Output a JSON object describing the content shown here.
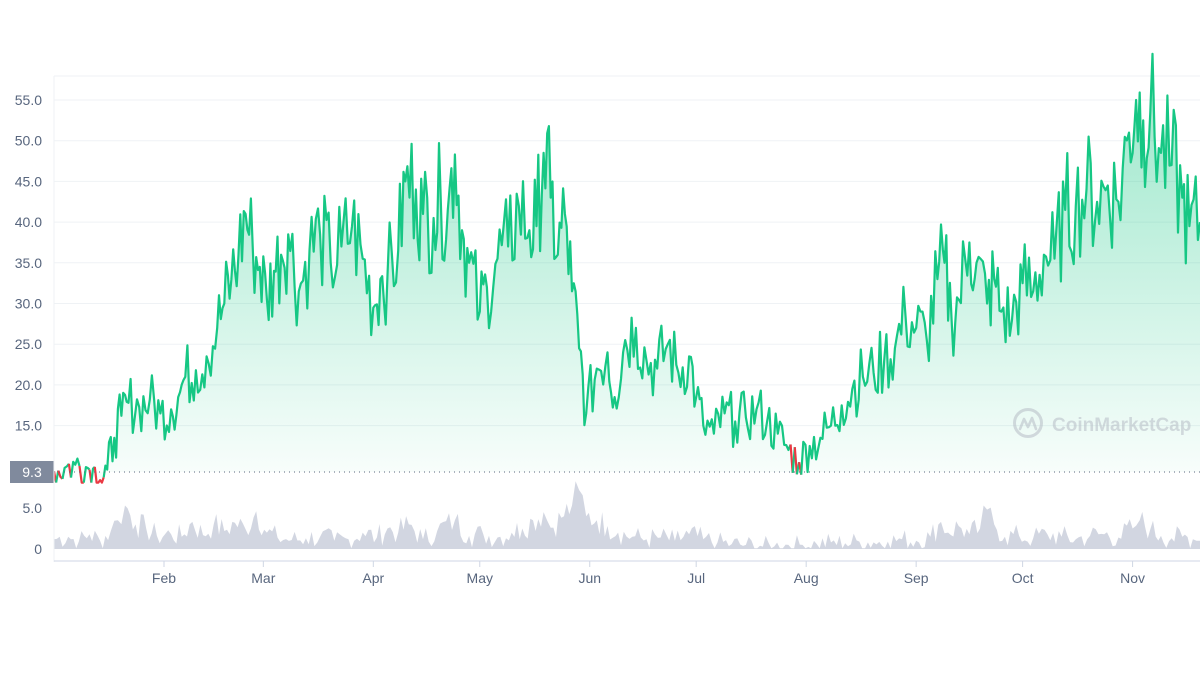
{
  "chart_data": {
    "type": "area",
    "watermark": {
      "text": "CoinMarketCap",
      "icon": "coinmarketcap-logo-icon"
    },
    "y_ticks": [
      "55.0",
      "50.0",
      "45.0",
      "40.0",
      "35.0",
      "30.0",
      "25.0",
      "20.0",
      "15.0"
    ],
    "ylim": [
      9.3,
      56.5
    ],
    "grid": true,
    "current_price_label": "9.3",
    "x_tick_labels": [
      "Feb",
      "Mar",
      "Apr",
      "May",
      "Jun",
      "Jul",
      "Aug",
      "Sep",
      "Oct",
      "Nov"
    ],
    "xlim": [
      "2021-01-01",
      "2021-11-20"
    ],
    "colors": {
      "up_line": "#16c784",
      "down_line": "#ea3943",
      "volume": "#cdd1de",
      "grid": "#eff2f5",
      "axis_text": "#58667e",
      "price_label_bg": "#808a9d"
    },
    "price_series": {
      "name": "Price",
      "points": [
        [
          "2021-01-01",
          9.4
        ],
        [
          "2021-01-04",
          9.8
        ],
        [
          "2021-01-07",
          10.2
        ],
        [
          "2021-01-10",
          9.9
        ],
        [
          "2021-01-12",
          9.7
        ],
        [
          "2021-01-14",
          8.3
        ],
        [
          "2021-01-16",
          9.6
        ],
        [
          "2021-01-18",
          13.5
        ],
        [
          "2021-01-20",
          16.2
        ],
        [
          "2021-01-22",
          17.8
        ],
        [
          "2021-01-25",
          17.3
        ],
        [
          "2021-01-28",
          18.2
        ],
        [
          "2021-01-31",
          16.5
        ],
        [
          "2021-02-03",
          17.0
        ],
        [
          "2021-02-05",
          18.5
        ],
        [
          "2021-02-07",
          21.0
        ],
        [
          "2021-02-10",
          21.8
        ],
        [
          "2021-02-13",
          23.5
        ],
        [
          "2021-02-16",
          27.0
        ],
        [
          "2021-02-18",
          30.0
        ],
        [
          "2021-02-20",
          33.0
        ],
        [
          "2021-02-22",
          36.0
        ],
        [
          "2021-02-24",
          41.0
        ],
        [
          "2021-02-26",
          37.0
        ],
        [
          "2021-02-28",
          34.5
        ],
        [
          "2021-03-02",
          30.5
        ],
        [
          "2021-03-04",
          34.0
        ],
        [
          "2021-03-06",
          36.0
        ],
        [
          "2021-03-08",
          38.5
        ],
        [
          "2021-03-11",
          31.5
        ],
        [
          "2021-03-14",
          36.5
        ],
        [
          "2021-03-17",
          38.5
        ],
        [
          "2021-03-20",
          35.0
        ],
        [
          "2021-03-23",
          37.0
        ],
        [
          "2021-03-26",
          39.5
        ],
        [
          "2021-03-29",
          35.5
        ],
        [
          "2021-04-01",
          29.5
        ],
        [
          "2021-04-03",
          33.0
        ],
        [
          "2021-04-05",
          33.5
        ],
        [
          "2021-04-08",
          36.5
        ],
        [
          "2021-04-10",
          45.0
        ],
        [
          "2021-04-13",
          44.0
        ],
        [
          "2021-04-15",
          41.0
        ],
        [
          "2021-04-18",
          40.5
        ],
        [
          "2021-04-20",
          43.0
        ],
        [
          "2021-04-22",
          41.5
        ],
        [
          "2021-04-24",
          48.3
        ],
        [
          "2021-04-26",
          39.0
        ],
        [
          "2021-04-28",
          35.0
        ],
        [
          "2021-05-01",
          29.0
        ],
        [
          "2021-05-03",
          32.0
        ],
        [
          "2021-05-06",
          35.5
        ],
        [
          "2021-05-09",
          37.0
        ],
        [
          "2021-05-12",
          42.0
        ],
        [
          "2021-05-15",
          39.0
        ],
        [
          "2021-05-17",
          39.5
        ],
        [
          "2021-05-19",
          48.5
        ],
        [
          "2021-05-21",
          43.0
        ],
        [
          "2021-05-23",
          36.0
        ],
        [
          "2021-05-25",
          41.0
        ],
        [
          "2021-05-27",
          31.5
        ],
        [
          "2021-05-29",
          24.5
        ],
        [
          "2021-05-31",
          16.5
        ],
        [
          "2021-06-03",
          22.0
        ],
        [
          "2021-06-06",
          24.0
        ],
        [
          "2021-06-08",
          18.5
        ],
        [
          "2021-06-11",
          25.5
        ],
        [
          "2021-06-14",
          27.0
        ],
        [
          "2021-06-17",
          23.0
        ],
        [
          "2021-06-20",
          22.0
        ],
        [
          "2021-06-23",
          25.0
        ],
        [
          "2021-06-26",
          21.5
        ],
        [
          "2021-06-29",
          23.5
        ],
        [
          "2021-07-01",
          18.5
        ],
        [
          "2021-07-03",
          15.0
        ],
        [
          "2021-07-06",
          14.0
        ],
        [
          "2021-07-09",
          16.5
        ],
        [
          "2021-07-12",
          15.5
        ],
        [
          "2021-07-15",
          16.0
        ],
        [
          "2021-07-18",
          17.0
        ],
        [
          "2021-07-21",
          15.5
        ],
        [
          "2021-07-24",
          14.0
        ],
        [
          "2021-07-27",
          12.0
        ],
        [
          "2021-07-30",
          10.5
        ],
        [
          "2021-08-02",
          12.5
        ],
        [
          "2021-08-05",
          13.5
        ],
        [
          "2021-08-08",
          15.0
        ],
        [
          "2021-08-11",
          17.5
        ],
        [
          "2021-08-14",
          19.5
        ],
        [
          "2021-08-17",
          21.0
        ],
        [
          "2021-08-20",
          21.5
        ],
        [
          "2021-08-23",
          23.0
        ],
        [
          "2021-08-26",
          24.5
        ],
        [
          "2021-08-29",
          28.5
        ],
        [
          "2021-09-01",
          27.0
        ],
        [
          "2021-09-04",
          25.5
        ],
        [
          "2021-09-07",
          33.0
        ],
        [
          "2021-09-09",
          35.0
        ],
        [
          "2021-09-11",
          28.0
        ],
        [
          "2021-09-13",
          30.5
        ],
        [
          "2021-09-16",
          37.5
        ],
        [
          "2021-09-18",
          35.0
        ],
        [
          "2021-09-21",
          30.0
        ],
        [
          "2021-09-23",
          33.0
        ],
        [
          "2021-09-25",
          29.0
        ],
        [
          "2021-09-28",
          28.0
        ],
        [
          "2021-10-01",
          32.5
        ],
        [
          "2021-10-04",
          31.5
        ],
        [
          "2021-10-07",
          36.0
        ],
        [
          "2021-10-10",
          35.5
        ],
        [
          "2021-10-13",
          41.5
        ],
        [
          "2021-10-16",
          42.0
        ],
        [
          "2021-10-19",
          44.0
        ],
        [
          "2021-10-22",
          42.5
        ],
        [
          "2021-10-25",
          44.5
        ],
        [
          "2021-10-28",
          42.5
        ],
        [
          "2021-10-31",
          51.0
        ],
        [
          "2021-11-02",
          55.0
        ],
        [
          "2021-11-04",
          52.5
        ],
        [
          "2021-11-06",
          53.5
        ],
        [
          "2021-11-09",
          48.5
        ],
        [
          "2021-11-12",
          47.0
        ],
        [
          "2021-11-15",
          43.0
        ],
        [
          "2021-11-17",
          39.5
        ],
        [
          "2021-11-20",
          40.0
        ]
      ]
    },
    "volume_ticks": [
      "5.0",
      "0"
    ],
    "volume_ylim": [
      0,
      8
    ],
    "volume_series": {
      "name": "Volume",
      "points": [
        [
          "2021-01-01",
          1.2
        ],
        [
          "2021-01-05",
          1.5
        ],
        [
          "2021-01-08",
          0.9
        ],
        [
          "2021-01-11",
          1.8
        ],
        [
          "2021-01-14",
          1.0
        ],
        [
          "2021-01-17",
          2.2
        ],
        [
          "2021-01-19",
          3.5
        ],
        [
          "2021-01-21",
          5.3
        ],
        [
          "2021-01-24",
          3.0
        ],
        [
          "2021-01-27",
          2.5
        ],
        [
          "2021-01-30",
          1.6
        ],
        [
          "2021-02-03",
          1.8
        ],
        [
          "2021-02-06",
          1.5
        ],
        [
          "2021-02-09",
          3.3
        ],
        [
          "2021-02-12",
          1.7
        ],
        [
          "2021-02-15",
          3.0
        ],
        [
          "2021-02-18",
          2.2
        ],
        [
          "2021-02-21",
          3.2
        ],
        [
          "2021-02-24",
          2.4
        ],
        [
          "2021-02-27",
          4.6
        ],
        [
          "2021-03-02",
          2.0
        ],
        [
          "2021-03-05",
          1.4
        ],
        [
          "2021-03-09",
          1.1
        ],
        [
          "2021-03-13",
          1.3
        ],
        [
          "2021-03-17",
          1.5
        ],
        [
          "2021-03-21",
          1.0
        ],
        [
          "2021-03-25",
          1.2
        ],
        [
          "2021-03-29",
          2.0
        ],
        [
          "2021-04-02",
          1.4
        ],
        [
          "2021-04-05",
          2.5
        ],
        [
          "2021-04-08",
          2.0
        ],
        [
          "2021-04-11",
          3.0
        ],
        [
          "2021-04-15",
          1.2
        ],
        [
          "2021-04-19",
          2.2
        ],
        [
          "2021-04-24",
          3.5
        ],
        [
          "2021-04-28",
          1.6
        ],
        [
          "2021-05-02",
          1.8
        ],
        [
          "2021-05-06",
          1.4
        ],
        [
          "2021-05-10",
          2.0
        ],
        [
          "2021-05-13",
          2.5
        ],
        [
          "2021-05-16",
          3.5
        ],
        [
          "2021-05-19",
          4.5
        ],
        [
          "2021-05-21",
          2.6
        ],
        [
          "2021-05-24",
          3.8
        ],
        [
          "2021-05-27",
          5.3
        ],
        [
          "2021-05-29",
          7.2
        ],
        [
          "2021-05-31",
          4.0
        ],
        [
          "2021-06-03",
          3.5
        ],
        [
          "2021-06-06",
          2.8
        ],
        [
          "2021-06-09",
          2.0
        ],
        [
          "2021-06-13",
          1.5
        ],
        [
          "2021-06-17",
          1.2
        ],
        [
          "2021-06-21",
          1.4
        ],
        [
          "2021-06-25",
          1.0
        ],
        [
          "2021-06-29",
          1.8
        ],
        [
          "2021-07-03",
          1.2
        ],
        [
          "2021-07-07",
          0.8
        ],
        [
          "2021-07-11",
          0.6
        ],
        [
          "2021-07-15",
          0.5
        ],
        [
          "2021-07-19",
          0.4
        ],
        [
          "2021-07-23",
          0.3
        ],
        [
          "2021-07-27",
          0.5
        ],
        [
          "2021-07-31",
          0.5
        ],
        [
          "2021-08-04",
          0.6
        ],
        [
          "2021-08-08",
          0.8
        ],
        [
          "2021-08-12",
          0.7
        ],
        [
          "2021-08-16",
          0.9
        ],
        [
          "2021-08-20",
          0.8
        ],
        [
          "2021-08-24",
          0.9
        ],
        [
          "2021-08-28",
          1.2
        ],
        [
          "2021-09-01",
          1.0
        ],
        [
          "2021-09-05",
          1.5
        ],
        [
          "2021-09-08",
          3.3
        ],
        [
          "2021-09-10",
          2.0
        ],
        [
          "2021-09-13",
          2.8
        ],
        [
          "2021-09-16",
          1.8
        ],
        [
          "2021-09-19",
          2.5
        ],
        [
          "2021-09-21",
          4.8
        ],
        [
          "2021-09-23",
          3.0
        ],
        [
          "2021-09-26",
          1.5
        ],
        [
          "2021-09-30",
          1.6
        ],
        [
          "2021-10-04",
          1.3
        ],
        [
          "2021-10-08",
          1.8
        ],
        [
          "2021-10-12",
          1.5
        ],
        [
          "2021-10-16",
          1.2
        ],
        [
          "2021-10-20",
          1.6
        ],
        [
          "2021-10-24",
          1.8
        ],
        [
          "2021-10-28",
          1.4
        ],
        [
          "2021-11-01",
          2.5
        ],
        [
          "2021-11-03",
          3.5
        ],
        [
          "2021-11-06",
          2.4
        ],
        [
          "2021-11-09",
          1.6
        ],
        [
          "2021-11-12",
          1.3
        ],
        [
          "2021-11-15",
          1.5
        ],
        [
          "2021-11-18",
          1.2
        ],
        [
          "2021-11-20",
          1.0
        ]
      ]
    }
  }
}
